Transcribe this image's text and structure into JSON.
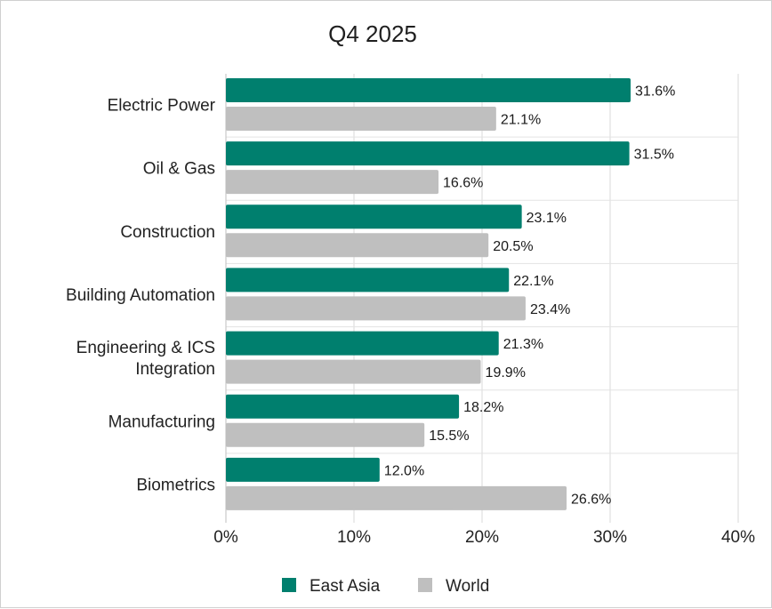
{
  "chart_data": {
    "type": "bar",
    "orientation": "horizontal",
    "title": "Q4 2025",
    "categories": [
      "Electric Power",
      "Oil & Gas",
      "Construction",
      "Building Automation",
      "Engineering & ICS Integration",
      "Manufacturing",
      "Biometrics"
    ],
    "category_lines": [
      [
        "Electric Power"
      ],
      [
        "Oil & Gas"
      ],
      [
        "Construction"
      ],
      [
        "Building Automation"
      ],
      [
        "Engineering & ICS",
        "Integration"
      ],
      [
        "Manufacturing"
      ],
      [
        "Biometrics"
      ]
    ],
    "series": [
      {
        "name": "East Asia",
        "color": "#007f6e",
        "values": [
          31.6,
          31.5,
          23.1,
          22.1,
          21.3,
          18.2,
          12.0
        ],
        "labels": [
          "31.6%",
          "31.5%",
          "23.1%",
          "22.1%",
          "21.3%",
          "18.2%",
          "12.0%"
        ]
      },
      {
        "name": "World",
        "color": "#bfbfbf",
        "values": [
          21.1,
          16.6,
          20.5,
          23.4,
          19.9,
          15.5,
          26.6
        ],
        "labels": [
          "21.1%",
          "16.6%",
          "20.5%",
          "23.4%",
          "19.9%",
          "15.5%",
          "26.6%"
        ]
      }
    ],
    "xlim": [
      0,
      40
    ],
    "xticks": [
      0,
      10,
      20,
      30,
      40
    ],
    "xtick_labels": [
      "0%",
      "10%",
      "20%",
      "30%",
      "40%"
    ],
    "grid": true,
    "legend_position": "bottom"
  }
}
